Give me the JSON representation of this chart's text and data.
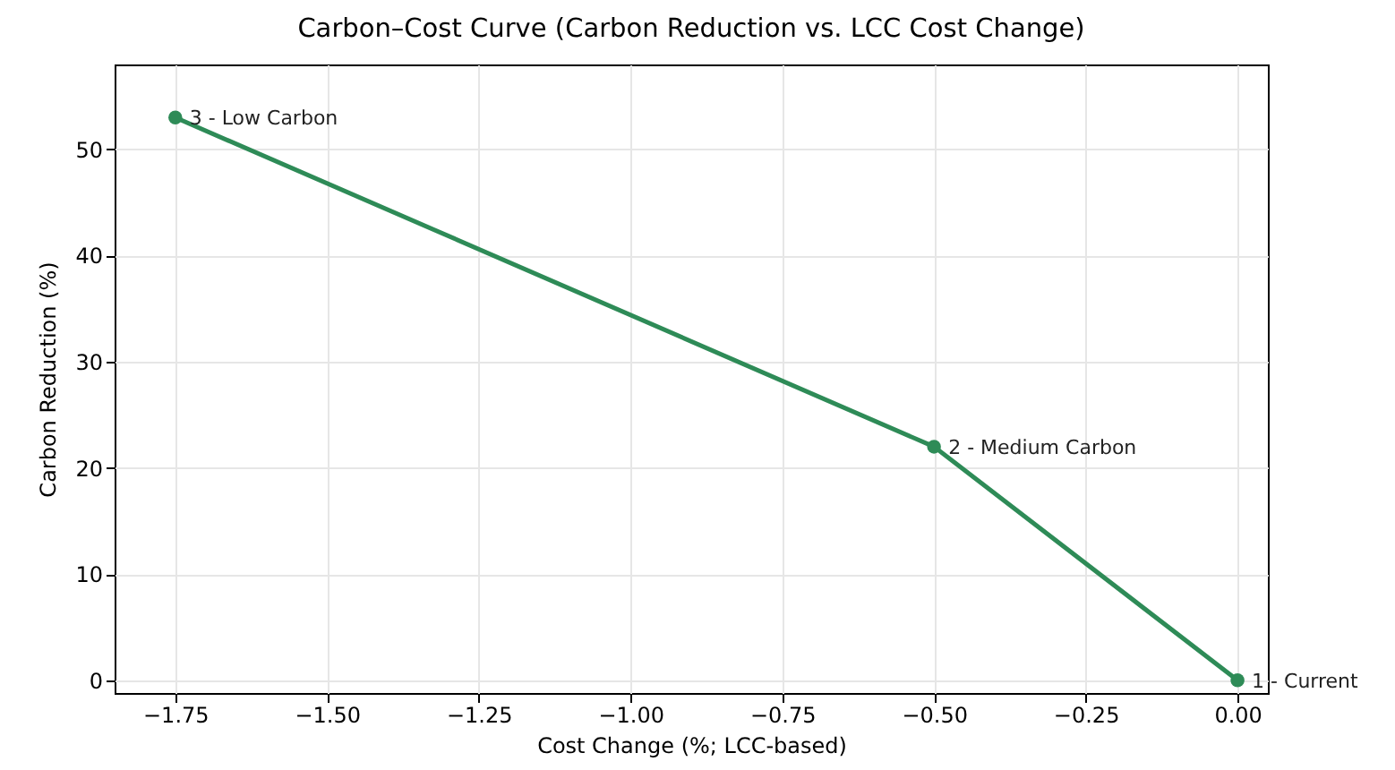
{
  "chart_data": {
    "type": "line",
    "title": "Carbon–Cost Curve (Carbon Reduction vs. LCC Cost Change)",
    "xlabel": "Cost Change (%; LCC-based)",
    "ylabel": "Carbon Reduction (%)",
    "x": [
      0,
      -0.5,
      -1.75
    ],
    "series": [
      {
        "color": "#2e8b57",
        "values": [
          0,
          22,
          53
        ]
      }
    ],
    "annotations": [
      {
        "text": "1 - Current",
        "x": 0,
        "y": 0
      },
      {
        "text": "2 - Medium Carbon",
        "x": -0.5,
        "y": 22
      },
      {
        "text": "3 - Low Carbon",
        "x": -1.75,
        "y": 53
      }
    ],
    "xlim": [
      -1.85,
      0.05
    ],
    "xticks": [
      {
        "value": -1.75,
        "label": "−1.75"
      },
      {
        "value": -1.5,
        "label": "−1.50"
      },
      {
        "value": -1.25,
        "label": "−1.25"
      },
      {
        "value": -1.0,
        "label": "−1.00"
      },
      {
        "value": -0.75,
        "label": "−0.75"
      },
      {
        "value": -0.5,
        "label": "−0.50"
      },
      {
        "value": -0.25,
        "label": "−0.25"
      },
      {
        "value": 0,
        "label": "0.00"
      }
    ],
    "ylim": [
      -1.2,
      58
    ],
    "yticks": [
      0,
      10,
      20,
      30,
      40,
      50
    ],
    "grid": true,
    "marker": "circle",
    "line_style": "solid"
  }
}
